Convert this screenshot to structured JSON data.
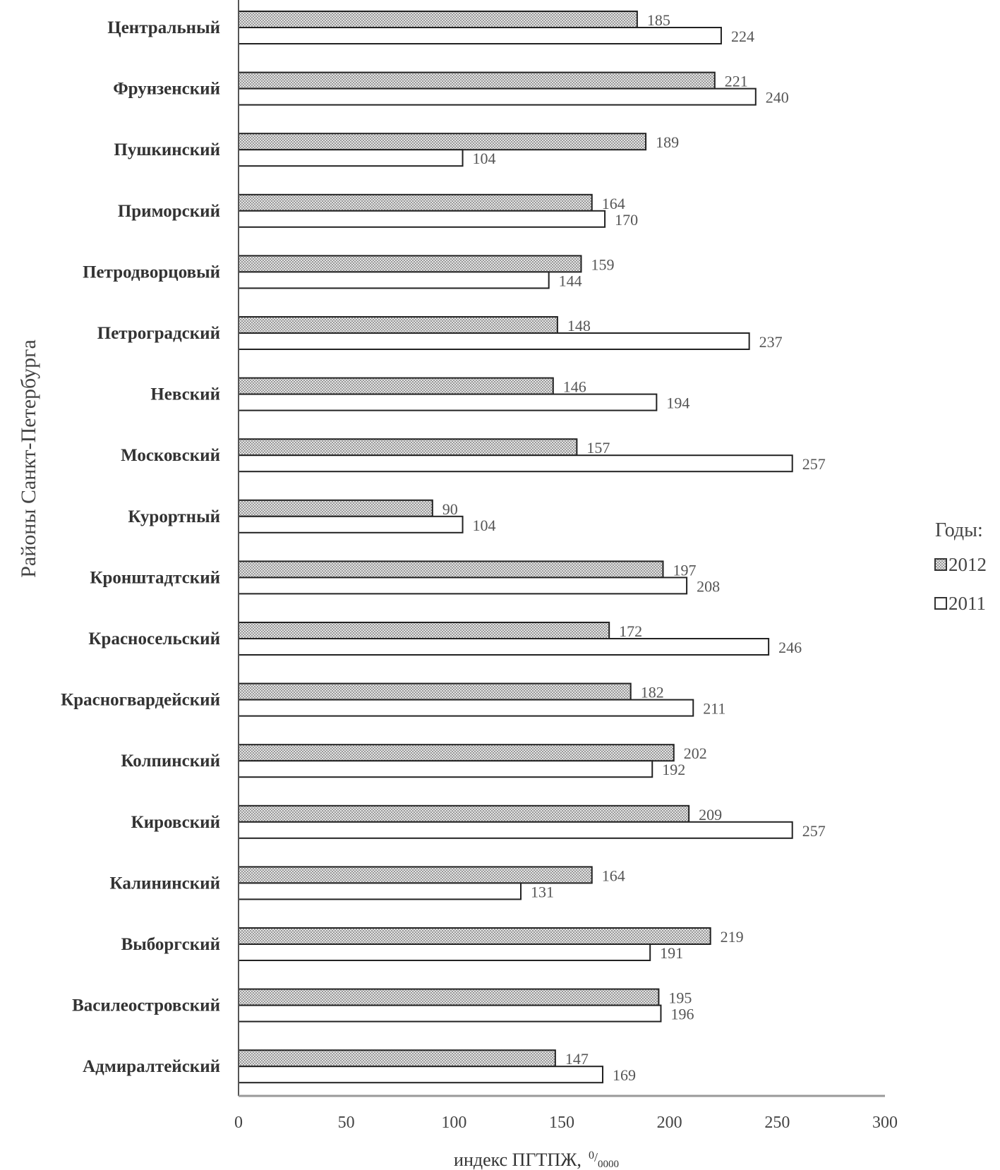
{
  "chart_data": {
    "type": "bar",
    "orientation": "horizontal",
    "title": "",
    "xlabel": "индекс ПГТПЖ, ⁰/₀₀₀₀",
    "xlabel_main": "индекс ПГТПЖ,",
    "xlabel_unit_num": "0",
    "xlabel_unit_den": "0000",
    "ylabel": "Районы  Санкт-Петербурга",
    "xlim": [
      0,
      300
    ],
    "xticks": [
      0,
      50,
      100,
      150,
      200,
      250,
      300
    ],
    "grid": false,
    "legend_title": "Годы:",
    "legend_placement": "right",
    "categories": [
      "Центральный",
      "Фрунзенский",
      "Пушкинский",
      "Приморский",
      "Петродворцовый",
      "Петроградский",
      "Невский",
      "Московский",
      "Курортный",
      "Кронштадтский",
      "Красносельский",
      "Красногвардейский",
      "Колпинский",
      "Кировский",
      "Калининский",
      "Выборгский",
      "Василеостровский",
      "Адмиралтейский"
    ],
    "series": [
      {
        "name": "2012",
        "pattern": "hatched",
        "values": [
          185,
          221,
          189,
          164,
          159,
          148,
          146,
          157,
          90,
          197,
          172,
          182,
          202,
          209,
          164,
          219,
          195,
          147
        ]
      },
      {
        "name": "2011",
        "pattern": "white",
        "values": [
          224,
          240,
          104,
          170,
          144,
          237,
          194,
          257,
          104,
          208,
          246,
          211,
          192,
          257,
          131,
          191,
          196,
          169
        ]
      }
    ]
  }
}
